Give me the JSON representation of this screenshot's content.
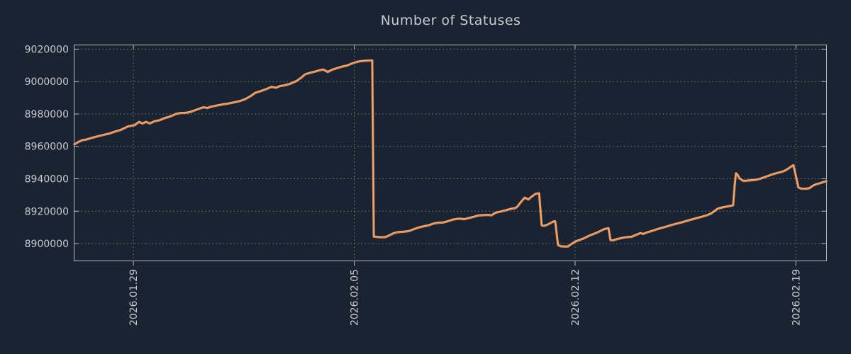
{
  "chart_data": {
    "type": "line",
    "title": "Number of Statuses",
    "grid": true,
    "legend": false,
    "x_axis": {
      "description": "dates, plotted as fractional days since 2026-01-27 00:00",
      "min": 0.12,
      "max": 23.97,
      "tick_positions": [
        2,
        9,
        16,
        23
      ],
      "tick_labels": [
        "2026.01.29",
        "2026.02.05",
        "2026.02.12",
        "2026.02.19"
      ]
    },
    "y_axis": {
      "min": 8889300,
      "max": 9022600,
      "tick_values": [
        9020000,
        9000000,
        8980000,
        8960000,
        8940000,
        8920000,
        8900000
      ],
      "tick_labels": [
        "9020000",
        "9000000",
        "8980000",
        "8960000",
        "8940000",
        "8920000",
        "8900000"
      ]
    },
    "series": [
      {
        "name": "Number of Statuses",
        "points": [
          [
            0.13,
            8961200
          ],
          [
            0.26,
            8962700
          ],
          [
            0.38,
            8963800
          ],
          [
            0.49,
            8964100
          ],
          [
            0.7,
            8965300
          ],
          [
            0.88,
            8966200
          ],
          [
            1.06,
            8967100
          ],
          [
            1.24,
            8967900
          ],
          [
            1.42,
            8969100
          ],
          [
            1.6,
            8970100
          ],
          [
            1.82,
            8972200
          ],
          [
            2.04,
            8973100
          ],
          [
            2.18,
            8975100
          ],
          [
            2.29,
            8974100
          ],
          [
            2.4,
            8975100
          ],
          [
            2.52,
            8974100
          ],
          [
            2.67,
            8975500
          ],
          [
            2.83,
            8976100
          ],
          [
            2.99,
            8977400
          ],
          [
            3.17,
            8978400
          ],
          [
            3.35,
            8980000
          ],
          [
            3.48,
            8980500
          ],
          [
            3.66,
            8980700
          ],
          [
            3.8,
            8981200
          ],
          [
            3.96,
            8982300
          ],
          [
            4.11,
            8983400
          ],
          [
            4.22,
            8984100
          ],
          [
            4.34,
            8983600
          ],
          [
            4.47,
            8984500
          ],
          [
            4.65,
            8985200
          ],
          [
            4.83,
            8985900
          ],
          [
            5.01,
            8986400
          ],
          [
            5.19,
            8987100
          ],
          [
            5.37,
            8987900
          ],
          [
            5.53,
            8989000
          ],
          [
            5.69,
            8990700
          ],
          [
            5.87,
            8993100
          ],
          [
            6.04,
            8994100
          ],
          [
            6.22,
            8995400
          ],
          [
            6.38,
            8996700
          ],
          [
            6.52,
            8996100
          ],
          [
            6.63,
            8997100
          ],
          [
            6.79,
            8997600
          ],
          [
            6.97,
            8998600
          ],
          [
            7.17,
            9000300
          ],
          [
            7.33,
            9002500
          ],
          [
            7.44,
            9004400
          ],
          [
            7.6,
            9005400
          ],
          [
            7.75,
            9006100
          ],
          [
            7.89,
            9006900
          ],
          [
            8.02,
            9007400
          ],
          [
            8.16,
            9005900
          ],
          [
            8.29,
            9007200
          ],
          [
            8.45,
            9008200
          ],
          [
            8.61,
            9009200
          ],
          [
            8.76,
            9009800
          ],
          [
            8.9,
            9010900
          ],
          [
            9.03,
            9011800
          ],
          [
            9.15,
            9012400
          ],
          [
            9.28,
            9012700
          ],
          [
            9.42,
            9012900
          ],
          [
            9.57,
            9013000
          ],
          [
            9.62,
            8904300
          ],
          [
            9.78,
            8903900
          ],
          [
            9.98,
            8903900
          ],
          [
            10.11,
            8905000
          ],
          [
            10.25,
            8906400
          ],
          [
            10.38,
            8907000
          ],
          [
            10.58,
            8907300
          ],
          [
            10.74,
            8907700
          ],
          [
            10.88,
            8908800
          ],
          [
            11.03,
            8909800
          ],
          [
            11.19,
            8910600
          ],
          [
            11.35,
            8911200
          ],
          [
            11.51,
            8912300
          ],
          [
            11.66,
            8912800
          ],
          [
            11.82,
            8913000
          ],
          [
            11.98,
            8913800
          ],
          [
            12.13,
            8914800
          ],
          [
            12.27,
            8915200
          ],
          [
            12.38,
            8915300
          ],
          [
            12.49,
            8915000
          ],
          [
            12.63,
            8915700
          ],
          [
            12.79,
            8916500
          ],
          [
            12.94,
            8917300
          ],
          [
            13.1,
            8917500
          ],
          [
            13.24,
            8917600
          ],
          [
            13.35,
            8917400
          ],
          [
            13.48,
            8919000
          ],
          [
            13.64,
            8919700
          ],
          [
            13.8,
            8920500
          ],
          [
            13.96,
            8921400
          ],
          [
            14.11,
            8921800
          ],
          [
            14.18,
            8923000
          ],
          [
            14.29,
            8925800
          ],
          [
            14.4,
            8928300
          ],
          [
            14.52,
            8927200
          ],
          [
            14.61,
            8928700
          ],
          [
            14.74,
            8930600
          ],
          [
            14.86,
            8931000
          ],
          [
            14.94,
            8911200
          ],
          [
            15.01,
            8910900
          ],
          [
            15.12,
            8911600
          ],
          [
            15.24,
            8912800
          ],
          [
            15.33,
            8913700
          ],
          [
            15.37,
            8913700
          ],
          [
            15.46,
            8899000
          ],
          [
            15.55,
            8898300
          ],
          [
            15.69,
            8898100
          ],
          [
            15.78,
            8898200
          ],
          [
            15.89,
            8899800
          ],
          [
            16.02,
            8901300
          ],
          [
            16.16,
            8902300
          ],
          [
            16.29,
            8903300
          ],
          [
            16.43,
            8904700
          ],
          [
            16.56,
            8905700
          ],
          [
            16.7,
            8906800
          ],
          [
            16.83,
            8908000
          ],
          [
            16.94,
            8909000
          ],
          [
            17.06,
            8909400
          ],
          [
            17.12,
            8902100
          ],
          [
            17.19,
            8901900
          ],
          [
            17.33,
            8902700
          ],
          [
            17.48,
            8903400
          ],
          [
            17.64,
            8903900
          ],
          [
            17.8,
            8904200
          ],
          [
            17.93,
            8905300
          ],
          [
            18.07,
            8906400
          ],
          [
            18.16,
            8905900
          ],
          [
            18.29,
            8906900
          ],
          [
            18.43,
            8907700
          ],
          [
            18.58,
            8908700
          ],
          [
            18.74,
            8909600
          ],
          [
            18.9,
            8910500
          ],
          [
            19.06,
            8911400
          ],
          [
            19.21,
            8912200
          ],
          [
            19.37,
            8913000
          ],
          [
            19.53,
            8913900
          ],
          [
            19.69,
            8914800
          ],
          [
            19.84,
            8915600
          ],
          [
            20.0,
            8916400
          ],
          [
            20.16,
            8917300
          ],
          [
            20.31,
            8918500
          ],
          [
            20.52,
            8921500
          ],
          [
            20.65,
            8922200
          ],
          [
            20.81,
            8922800
          ],
          [
            20.92,
            8923200
          ],
          [
            21.01,
            8923600
          ],
          [
            21.06,
            8936000
          ],
          [
            21.1,
            8943300
          ],
          [
            21.15,
            8942500
          ],
          [
            21.21,
            8940300
          ],
          [
            21.3,
            8939000
          ],
          [
            21.37,
            8938600
          ],
          [
            21.48,
            8938900
          ],
          [
            21.6,
            8939100
          ],
          [
            21.73,
            8939300
          ],
          [
            21.87,
            8940000
          ],
          [
            22.0,
            8940900
          ],
          [
            22.13,
            8941800
          ],
          [
            22.27,
            8942800
          ],
          [
            22.4,
            8943500
          ],
          [
            22.54,
            8944200
          ],
          [
            22.65,
            8945000
          ],
          [
            22.76,
            8946300
          ],
          [
            22.85,
            8947500
          ],
          [
            22.92,
            8948400
          ],
          [
            23.08,
            8934600
          ],
          [
            23.17,
            8933900
          ],
          [
            23.3,
            8933800
          ],
          [
            23.42,
            8934100
          ],
          [
            23.55,
            8935800
          ],
          [
            23.66,
            8936700
          ],
          [
            23.78,
            8937300
          ],
          [
            23.87,
            8938000
          ],
          [
            23.96,
            8938400
          ]
        ]
      }
    ]
  },
  "colors": {
    "background": "#1a2331",
    "text": "#c7cbd1",
    "grid": "#9aa1ab",
    "border": "#b4bac3",
    "line": "#de8c55",
    "line_highlight": "#f4b07e"
  }
}
